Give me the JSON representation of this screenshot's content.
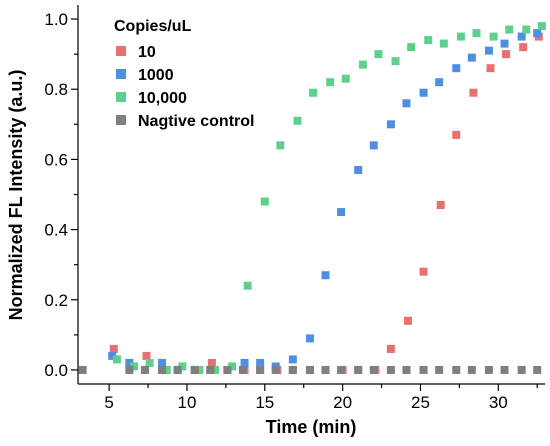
{
  "chart_data": {
    "type": "scatter",
    "xlabel": "Time (min)",
    "ylabel": "Normalized FL Intensity (a.u.)",
    "xlim": [
      3,
      33
    ],
    "ylim": [
      -0.04,
      1.04
    ],
    "xticks": [
      5,
      10,
      15,
      20,
      25,
      30
    ],
    "yticks": [
      0.0,
      0.2,
      0.4,
      0.6,
      0.8,
      1.0
    ],
    "x_tick_labels": [
      "5",
      "10",
      "15",
      "20",
      "25",
      "30"
    ],
    "y_tick_labels": [
      "0.0",
      "0.2",
      "0.4",
      "0.6",
      "0.8",
      "1.0"
    ],
    "legend_title": "Copies/uL",
    "legend_position": "top-left",
    "grid": false,
    "series": [
      {
        "name": "10",
        "color": "#e8706f",
        "x": [
          5.3,
          6.3,
          7.4,
          8.4,
          9.4,
          10.5,
          11.6,
          12.6,
          13.7,
          14.7,
          15.8,
          16.8,
          17.9,
          18.9,
          20.0,
          21.0,
          22.1,
          23.1,
          24.2,
          25.2,
          26.3,
          27.3,
          28.4,
          29.5,
          30.5,
          31.6,
          32.6
        ],
        "y": [
          0.06,
          0.02,
          0.04,
          0.0,
          0.0,
          0.0,
          0.02,
          0.0,
          0.0,
          0.0,
          0.0,
          0.0,
          0.0,
          0.0,
          0.0,
          0.0,
          0.0,
          0.06,
          0.14,
          0.28,
          0.47,
          0.67,
          0.79,
          0.86,
          0.9,
          0.92,
          0.95
        ]
      },
      {
        "name": "1000",
        "color": "#4f8fe0",
        "x": [
          5.2,
          6.3,
          7.3,
          8.4,
          9.4,
          10.5,
          11.5,
          12.6,
          13.7,
          14.7,
          15.7,
          16.8,
          17.9,
          18.9,
          19.9,
          21.0,
          22.0,
          23.1,
          24.1,
          25.2,
          26.2,
          27.3,
          28.3,
          29.4,
          30.4,
          31.5,
          32.5
        ],
        "y": [
          0.04,
          0.02,
          0.0,
          0.02,
          0.0,
          0.0,
          0.0,
          0.0,
          0.02,
          0.02,
          0.01,
          0.03,
          0.09,
          0.27,
          0.45,
          0.57,
          0.64,
          0.7,
          0.76,
          0.79,
          0.82,
          0.86,
          0.89,
          0.91,
          0.93,
          0.95,
          0.96
        ]
      },
      {
        "name": "10,000",
        "color": "#5fd08c",
        "x": [
          5.5,
          6.6,
          7.6,
          8.7,
          9.7,
          10.8,
          11.8,
          12.9,
          13.9,
          15.0,
          16.0,
          17.1,
          18.1,
          19.2,
          20.2,
          21.3,
          22.3,
          23.4,
          24.4,
          25.5,
          26.5,
          27.6,
          28.6,
          29.7,
          30.7,
          31.8,
          32.8
        ],
        "y": [
          0.03,
          0.01,
          0.02,
          0.0,
          0.01,
          0.0,
          0.0,
          0.01,
          0.24,
          0.48,
          0.64,
          0.71,
          0.79,
          0.82,
          0.83,
          0.87,
          0.9,
          0.88,
          0.92,
          0.94,
          0.93,
          0.95,
          0.96,
          0.95,
          0.97,
          0.97,
          0.98
        ]
      },
      {
        "name": "Nagtive control",
        "color": "#7f7f7f",
        "x": [
          3.3,
          6.3,
          7.3,
          8.4,
          9.4,
          10.5,
          11.5,
          12.6,
          13.6,
          14.7,
          15.7,
          16.8,
          17.9,
          18.9,
          19.9,
          21.0,
          22.0,
          23.1,
          24.1,
          25.2,
          26.2,
          27.3,
          28.3,
          29.4,
          30.4,
          31.5,
          32.5
        ],
        "y": [
          0.0,
          0.0,
          0.0,
          0.0,
          0.0,
          0.0,
          0.0,
          0.0,
          0.0,
          0.0,
          0.0,
          0.0,
          0.0,
          0.0,
          0.0,
          0.0,
          0.0,
          0.0,
          0.0,
          0.0,
          0.0,
          0.0,
          0.0,
          0.0,
          0.0,
          0.0,
          0.0
        ]
      }
    ]
  }
}
